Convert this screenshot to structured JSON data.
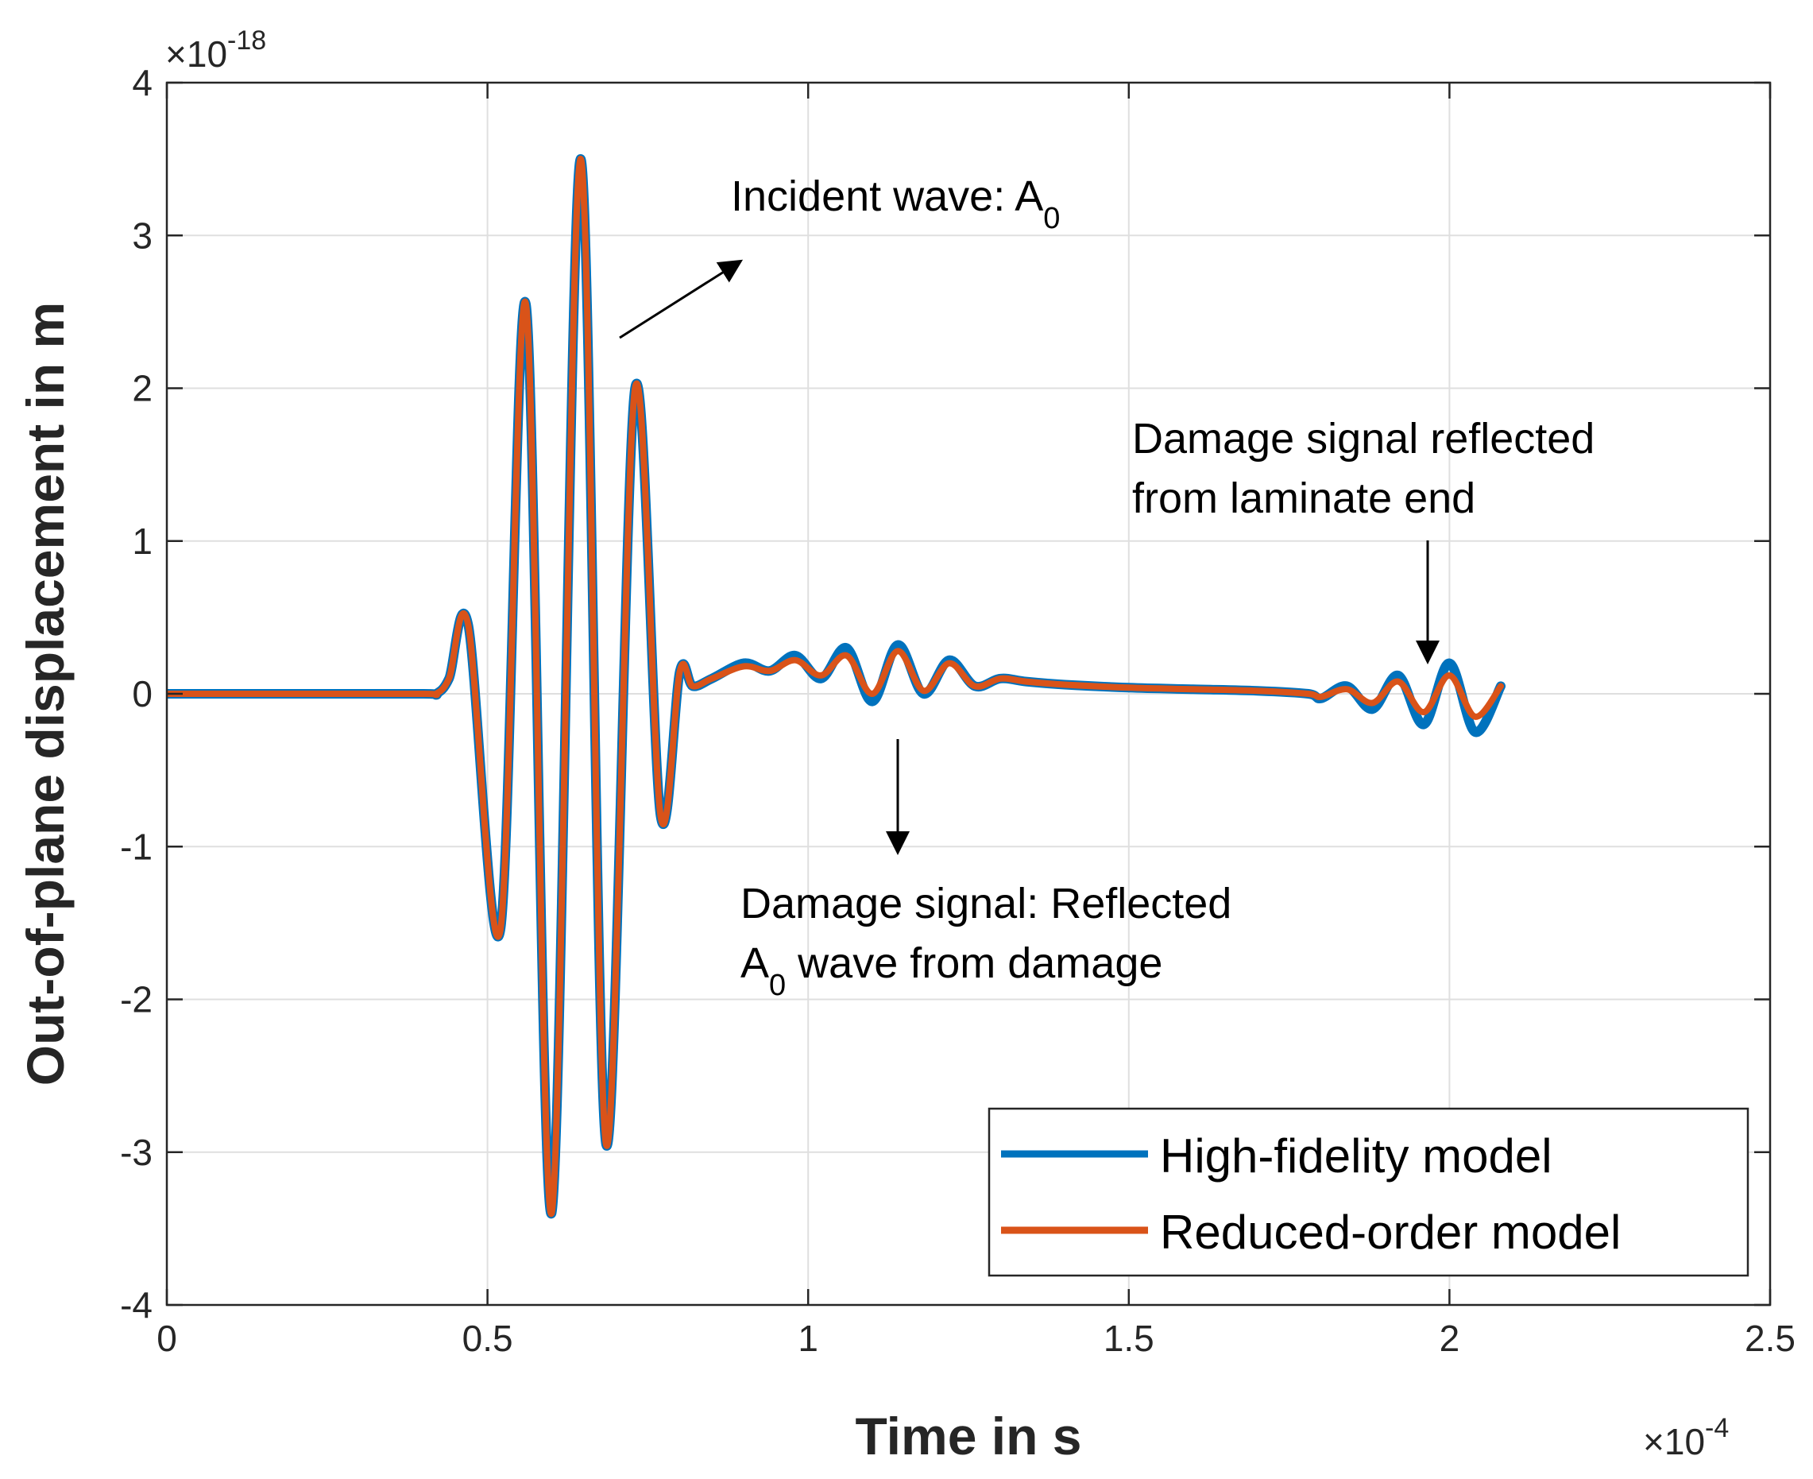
{
  "chart_data": {
    "type": "line",
    "title": "",
    "xlabel": "Time in s",
    "ylabel": "Out-of-plane displacement in m",
    "xlim": [
      0,
      2.5
    ],
    "ylim": [
      -4,
      4
    ],
    "x_exponent": {
      "base": "10",
      "power": "-4",
      "prefix": "×"
    },
    "y_exponent": {
      "base": "10",
      "power": "-18",
      "prefix": "×"
    },
    "xticks": [
      0,
      0.5,
      1,
      1.5,
      2,
      2.5
    ],
    "xtick_labels": [
      "0",
      "0.5",
      "1",
      "1.5",
      "2",
      "2.5"
    ],
    "yticks": [
      -4,
      -3,
      -2,
      -1,
      0,
      1,
      2,
      3,
      4
    ],
    "ytick_labels": [
      "-4",
      "-3",
      "-2",
      "-1",
      "0",
      "1",
      "2",
      "3",
      "4"
    ],
    "grid": true,
    "legend_position": "bottom-right",
    "series": [
      {
        "name": "High-fidelity model",
        "color": "#0072BD",
        "x": [
          0,
          0.2,
          0.4,
          0.42,
          0.44,
          0.47,
          0.52,
          0.56,
          0.6,
          0.645,
          0.685,
          0.73,
          0.77,
          0.8,
          0.82,
          0.85,
          0.9,
          0.94,
          0.98,
          1.02,
          1.06,
          1.1,
          1.14,
          1.18,
          1.22,
          1.26,
          1.3,
          1.34,
          1.4,
          1.5,
          1.6,
          1.7,
          1.78,
          1.8,
          1.84,
          1.88,
          1.92,
          1.96,
          2.0,
          2.04,
          2.08
        ],
        "values": [
          0,
          0,
          0,
          0,
          0.1,
          0.45,
          -1.55,
          2.55,
          -3.4,
          3.5,
          -2.95,
          2.0,
          -0.8,
          0.15,
          0.05,
          0.1,
          0.2,
          0.15,
          0.25,
          0.1,
          0.3,
          -0.05,
          0.32,
          0.0,
          0.22,
          0.05,
          0.1,
          0.08,
          0.06,
          0.04,
          0.03,
          0.02,
          0.0,
          -0.03,
          0.05,
          -0.1,
          0.12,
          -0.2,
          0.2,
          -0.25,
          0.05
        ]
      },
      {
        "name": "Reduced-order model",
        "color": "#D95319",
        "x": [
          0,
          0.2,
          0.4,
          0.42,
          0.44,
          0.47,
          0.52,
          0.56,
          0.6,
          0.645,
          0.685,
          0.73,
          0.77,
          0.8,
          0.82,
          0.85,
          0.9,
          0.94,
          0.98,
          1.02,
          1.06,
          1.1,
          1.14,
          1.18,
          1.22,
          1.26,
          1.3,
          1.34,
          1.4,
          1.5,
          1.6,
          1.7,
          1.78,
          1.8,
          1.84,
          1.88,
          1.92,
          1.96,
          2.0,
          2.04,
          2.08
        ],
        "values": [
          0,
          0,
          0,
          0,
          0.1,
          0.45,
          -1.55,
          2.55,
          -3.4,
          3.5,
          -2.95,
          2.0,
          -0.8,
          0.15,
          0.05,
          0.1,
          0.18,
          0.15,
          0.22,
          0.12,
          0.25,
          0.0,
          0.28,
          0.02,
          0.2,
          0.05,
          0.1,
          0.08,
          0.06,
          0.04,
          0.03,
          0.02,
          0.0,
          -0.02,
          0.03,
          -0.06,
          0.08,
          -0.12,
          0.12,
          -0.15,
          0.05
        ]
      }
    ],
    "annotations": [
      {
        "id": "incident",
        "lines": [
          "Incident wave: A"
        ],
        "subscript": "0"
      },
      {
        "id": "damage",
        "lines": [
          "Damage signal: Reflected",
          "A"
        ],
        "line2_rest": " wave from damage",
        "subscript": "0"
      },
      {
        "id": "end",
        "lines": [
          "Damage signal reflected",
          "from laminate end"
        ]
      }
    ]
  }
}
